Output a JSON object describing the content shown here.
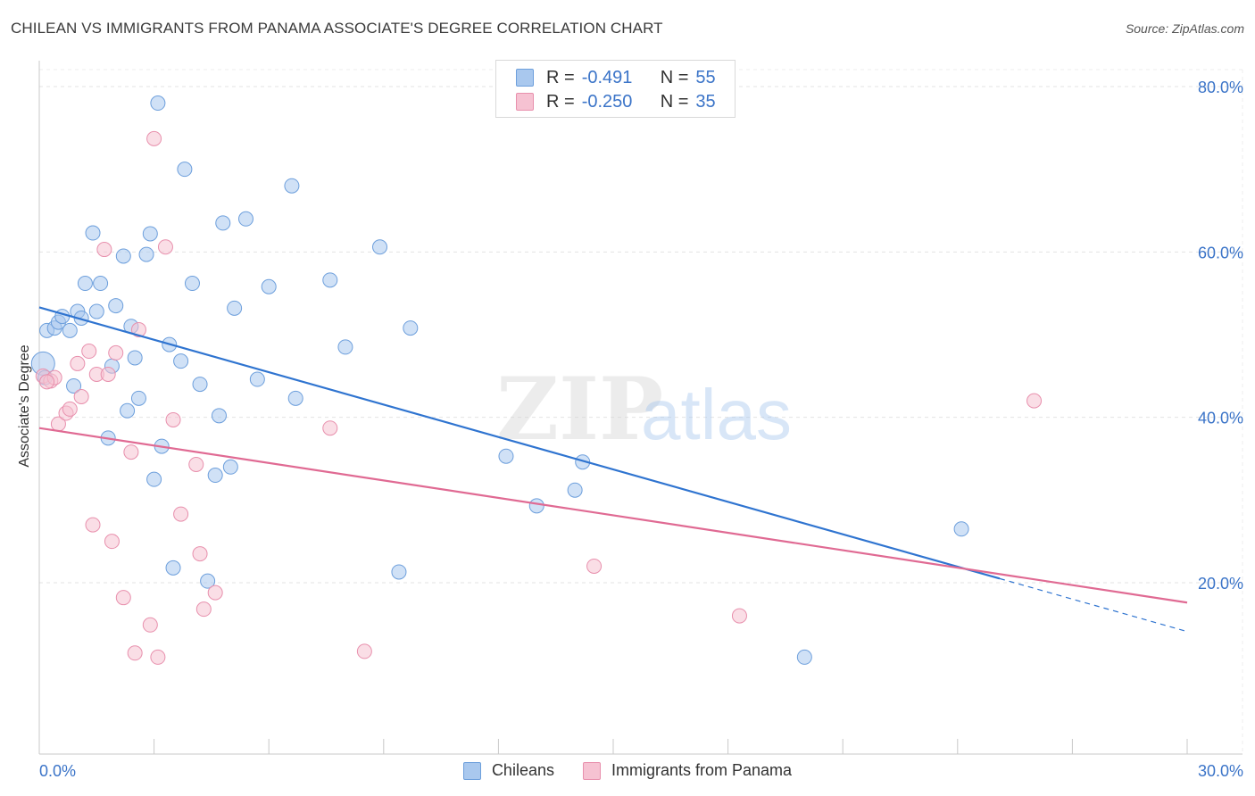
{
  "header": {
    "title": "CHILEAN VS IMMIGRANTS FROM PANAMA ASSOCIATE'S DEGREE CORRELATION CHART",
    "source": "Source: ZipAtlas.com"
  },
  "legend_top": [
    {
      "r_key": "R =",
      "r_value": "-0.491",
      "n_key": "N =",
      "n_value": "55",
      "color": "#a9c8ee",
      "border": "#6d9fdc"
    },
    {
      "r_key": "R =",
      "r_value": "-0.250",
      "n_key": "N =",
      "n_value": "35",
      "color": "#f6c2d2",
      "border": "#e890ad"
    }
  ],
  "watermark": {
    "zip": "ZIP",
    "atlas": "atlas"
  },
  "chart_data": {
    "type": "scatter",
    "title": "CHILEAN VS IMMIGRANTS FROM PANAMA ASSOCIATE'S DEGREE CORRELATION CHART",
    "xlabel": "",
    "ylabel": "Associate's Degree",
    "xlim": [
      0,
      30
    ],
    "ylim": [
      0,
      85
    ],
    "x_tick_labels": [
      "0.0%",
      "30.0%"
    ],
    "y_ticks": [
      20,
      40,
      60,
      80
    ],
    "y_tick_labels": [
      "20.0%",
      "40.0%",
      "60.0%",
      "80.0%"
    ],
    "grid": true,
    "legend_position": "bottom",
    "series": [
      {
        "name": "Chileans",
        "color": "#a9c8ee",
        "edge": "#6d9fdc",
        "line_color": "#2f74d0",
        "points": [
          [
            0.1,
            46.5
          ],
          [
            0.2,
            50.5
          ],
          [
            0.4,
            50.8
          ],
          [
            0.5,
            51.5
          ],
          [
            0.6,
            52.2
          ],
          [
            0.8,
            50.5
          ],
          [
            1.0,
            52.8
          ],
          [
            1.1,
            52.0
          ],
          [
            1.2,
            56.2
          ],
          [
            1.4,
            62.3
          ],
          [
            1.5,
            52.8
          ],
          [
            1.6,
            56.2
          ],
          [
            1.8,
            37.5
          ],
          [
            1.9,
            46.2
          ],
          [
            2.0,
            53.5
          ],
          [
            2.2,
            59.5
          ],
          [
            2.3,
            40.8
          ],
          [
            2.4,
            51.0
          ],
          [
            2.5,
            47.2
          ],
          [
            2.6,
            42.3
          ],
          [
            2.8,
            59.7
          ],
          [
            2.9,
            62.2
          ],
          [
            3.0,
            32.5
          ],
          [
            3.1,
            78.0
          ],
          [
            3.2,
            36.5
          ],
          [
            3.4,
            48.8
          ],
          [
            3.5,
            21.8
          ],
          [
            3.7,
            46.8
          ],
          [
            3.8,
            70.0
          ],
          [
            4.0,
            56.2
          ],
          [
            4.2,
            44.0
          ],
          [
            4.4,
            20.2
          ],
          [
            4.6,
            33.0
          ],
          [
            4.7,
            40.2
          ],
          [
            4.8,
            63.5
          ],
          [
            5.0,
            34.0
          ],
          [
            5.1,
            53.2
          ],
          [
            5.4,
            64.0
          ],
          [
            5.7,
            44.6
          ],
          [
            6.0,
            55.8
          ],
          [
            6.6,
            68.0
          ],
          [
            6.7,
            42.3
          ],
          [
            7.6,
            56.6
          ],
          [
            8.0,
            48.5
          ],
          [
            8.9,
            60.6
          ],
          [
            9.4,
            21.3
          ],
          [
            9.7,
            50.8
          ],
          [
            12.2,
            35.3
          ],
          [
            13.0,
            29.3
          ],
          [
            14.0,
            31.2
          ],
          [
            14.2,
            34.6
          ],
          [
            20.0,
            11.0
          ],
          [
            24.1,
            26.5
          ],
          [
            0.15,
            44.8
          ],
          [
            0.9,
            43.8
          ]
        ],
        "trend": {
          "x": [
            0,
            25.1
          ],
          "y": [
            53.3,
            20.5
          ],
          "dashed_extension": {
            "x": [
              25.1,
              30
            ],
            "y": [
              20.5,
              14.1
            ]
          }
        }
      },
      {
        "name": "Immigrants from Panama",
        "color": "#f6c2d2",
        "edge": "#e890ad",
        "line_color": "#e06a93",
        "points": [
          [
            0.1,
            45.0
          ],
          [
            0.3,
            44.4
          ],
          [
            0.4,
            44.8
          ],
          [
            0.5,
            39.2
          ],
          [
            0.7,
            40.5
          ],
          [
            0.8,
            41.0
          ],
          [
            1.0,
            46.5
          ],
          [
            1.1,
            42.5
          ],
          [
            1.3,
            48.0
          ],
          [
            1.4,
            27.0
          ],
          [
            1.5,
            45.2
          ],
          [
            1.7,
            60.3
          ],
          [
            1.8,
            45.2
          ],
          [
            1.9,
            25.0
          ],
          [
            2.0,
            47.8
          ],
          [
            2.2,
            18.2
          ],
          [
            2.4,
            35.8
          ],
          [
            2.5,
            11.5
          ],
          [
            2.6,
            50.6
          ],
          [
            2.9,
            14.9
          ],
          [
            3.0,
            73.7
          ],
          [
            3.1,
            11.0
          ],
          [
            3.3,
            60.6
          ],
          [
            3.5,
            39.7
          ],
          [
            3.7,
            28.3
          ],
          [
            4.1,
            34.3
          ],
          [
            4.2,
            23.5
          ],
          [
            4.3,
            16.8
          ],
          [
            4.6,
            18.8
          ],
          [
            7.6,
            38.7
          ],
          [
            8.5,
            11.7
          ],
          [
            14.5,
            22.0
          ],
          [
            18.3,
            16.0
          ],
          [
            26.0,
            42.0
          ],
          [
            0.2,
            44.3
          ]
        ],
        "trend": {
          "x": [
            0,
            30
          ],
          "y": [
            38.7,
            17.6
          ]
        }
      }
    ]
  },
  "legend_bottom": [
    {
      "label": "Chileans",
      "color": "#a9c8ee",
      "border": "#6d9fdc"
    },
    {
      "label": "Immigrants from Panama",
      "color": "#f6c2d2",
      "border": "#e890ad"
    }
  ]
}
